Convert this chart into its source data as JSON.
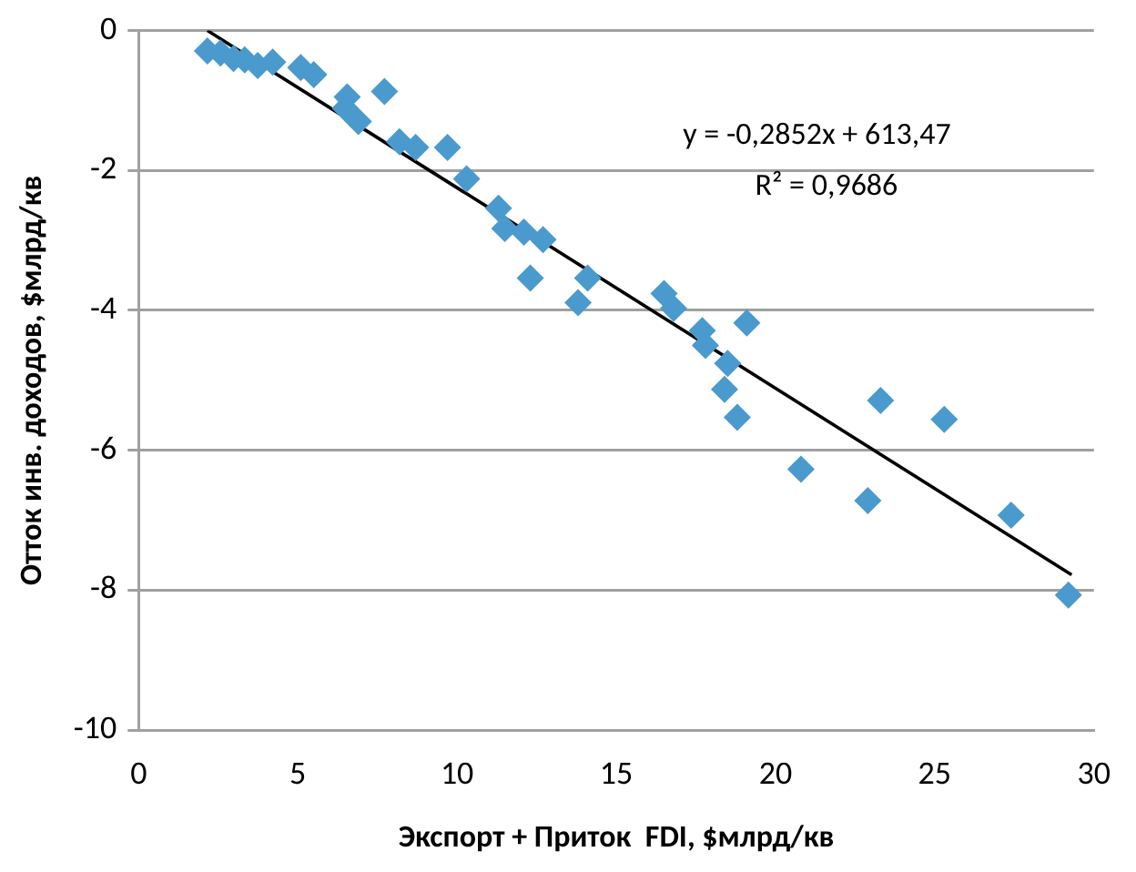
{
  "chart_data": {
    "type": "scatter",
    "xlabel": "Экспорт + Приток  FDI, $млрд/кв",
    "ylabel": "Отток инв. доходов, $млрд/кв",
    "annotations": [
      "y = -0,2852x + 613,47",
      "R² = 0,9686"
    ],
    "xlim": [
      0,
      30
    ],
    "xticks": [
      0,
      5,
      10,
      15,
      20,
      25,
      30
    ],
    "ylim": [
      -10,
      0
    ],
    "yticks": [
      -10,
      -8,
      -6,
      -4,
      -2,
      0
    ],
    "grid": "y",
    "legend": false,
    "marker": "diamond",
    "series": [
      {
        "color": "#4a9acd",
        "x": [
          2.16,
          2.57,
          2.98,
          3.33,
          3.74,
          4.21,
          5.09,
          5.5,
          6.55,
          6.49,
          6.9,
          7.72,
          8.19,
          8.7,
          9.7,
          10.3,
          11.3,
          11.5,
          12.1,
          12.7,
          12.3,
          14.1,
          13.8,
          16.5,
          16.8,
          17.7,
          17.8,
          18.5,
          18.4,
          18.8,
          19.1,
          20.8,
          22.9,
          23.3,
          25.3,
          27.4,
          29.2
        ],
        "values": [
          -0.29,
          -0.32,
          -0.4,
          -0.42,
          -0.5,
          -0.45,
          -0.53,
          -0.63,
          -0.95,
          -1.11,
          -1.3,
          -0.87,
          -1.59,
          -1.67,
          -1.67,
          -2.12,
          -2.54,
          -2.83,
          -2.88,
          -2.99,
          -3.54,
          -3.54,
          -3.89,
          -3.76,
          -3.97,
          -4.29,
          -4.5,
          -4.76,
          -5.13,
          -5.53,
          -4.18,
          -6.27,
          -6.72,
          -5.29,
          -5.56,
          -6.93,
          -8.07
        ]
      },
      {
        "type": "line",
        "color": "#000000",
        "marker": "none",
        "x": [
          2.16,
          29.3
        ],
        "values": [
          0,
          -7.78
        ]
      }
    ]
  }
}
